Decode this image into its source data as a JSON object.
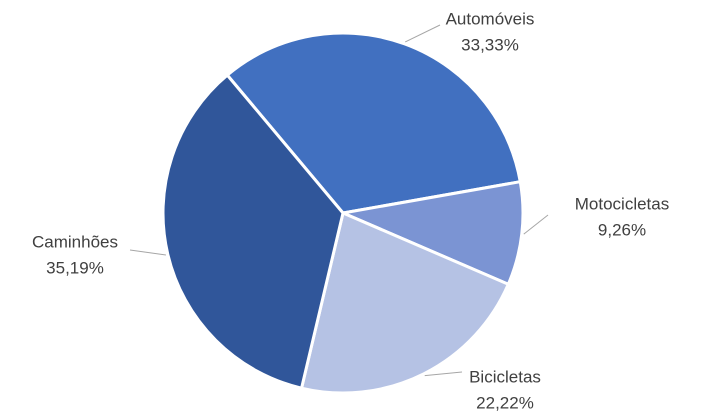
{
  "chart_data": {
    "type": "pie",
    "categories": [
      "Automóveis",
      "Motocicletas",
      "Bicicletas",
      "Caminhões"
    ],
    "values": [
      33.33,
      9.26,
      22.22,
      35.19
    ],
    "value_labels": [
      "33,33%",
      "9,26%",
      "22,22%",
      "35,19%"
    ],
    "colors": [
      "#4170c0",
      "#7b94d3",
      "#b5c2e4",
      "#30569a"
    ]
  }
}
